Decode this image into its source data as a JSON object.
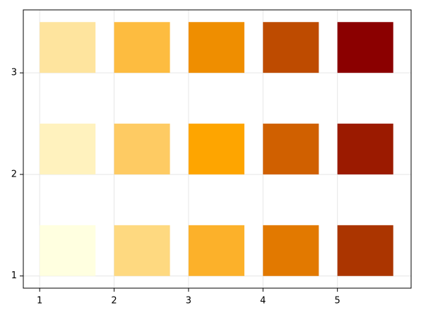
{
  "chart_data": {
    "type": "rect",
    "xlim": [
      0.78,
      5.99
    ],
    "ylim": [
      0.88,
      3.62
    ],
    "xticks": [
      1,
      2,
      3,
      4,
      5
    ],
    "yticks": [
      1,
      2,
      3
    ],
    "grid": true,
    "width": 0.75,
    "height": 0.5,
    "rects": [
      {
        "x": 1,
        "y": 1,
        "color": "#ffffe0"
      },
      {
        "x": 1,
        "y": 2,
        "color": "#fff2be"
      },
      {
        "x": 1,
        "y": 3,
        "color": "#fee49e"
      },
      {
        "x": 2,
        "y": 1,
        "color": "#fed980"
      },
      {
        "x": 2,
        "y": 2,
        "color": "#fecb63"
      },
      {
        "x": 2,
        "y": 3,
        "color": "#fdbc40"
      },
      {
        "x": 3,
        "y": 1,
        "color": "#fcb12a"
      },
      {
        "x": 3,
        "y": 2,
        "color": "#fea500"
      },
      {
        "x": 3,
        "y": 3,
        "color": "#ef8e00"
      },
      {
        "x": 4,
        "y": 1,
        "color": "#e27900"
      },
      {
        "x": 4,
        "y": 2,
        "color": "#d06000"
      },
      {
        "x": 4,
        "y": 3,
        "color": "#be4b00"
      },
      {
        "x": 5,
        "y": 1,
        "color": "#ab3500"
      },
      {
        "x": 5,
        "y": 2,
        "color": "#9b1a00"
      },
      {
        "x": 5,
        "y": 3,
        "color": "#8b0000"
      }
    ]
  }
}
